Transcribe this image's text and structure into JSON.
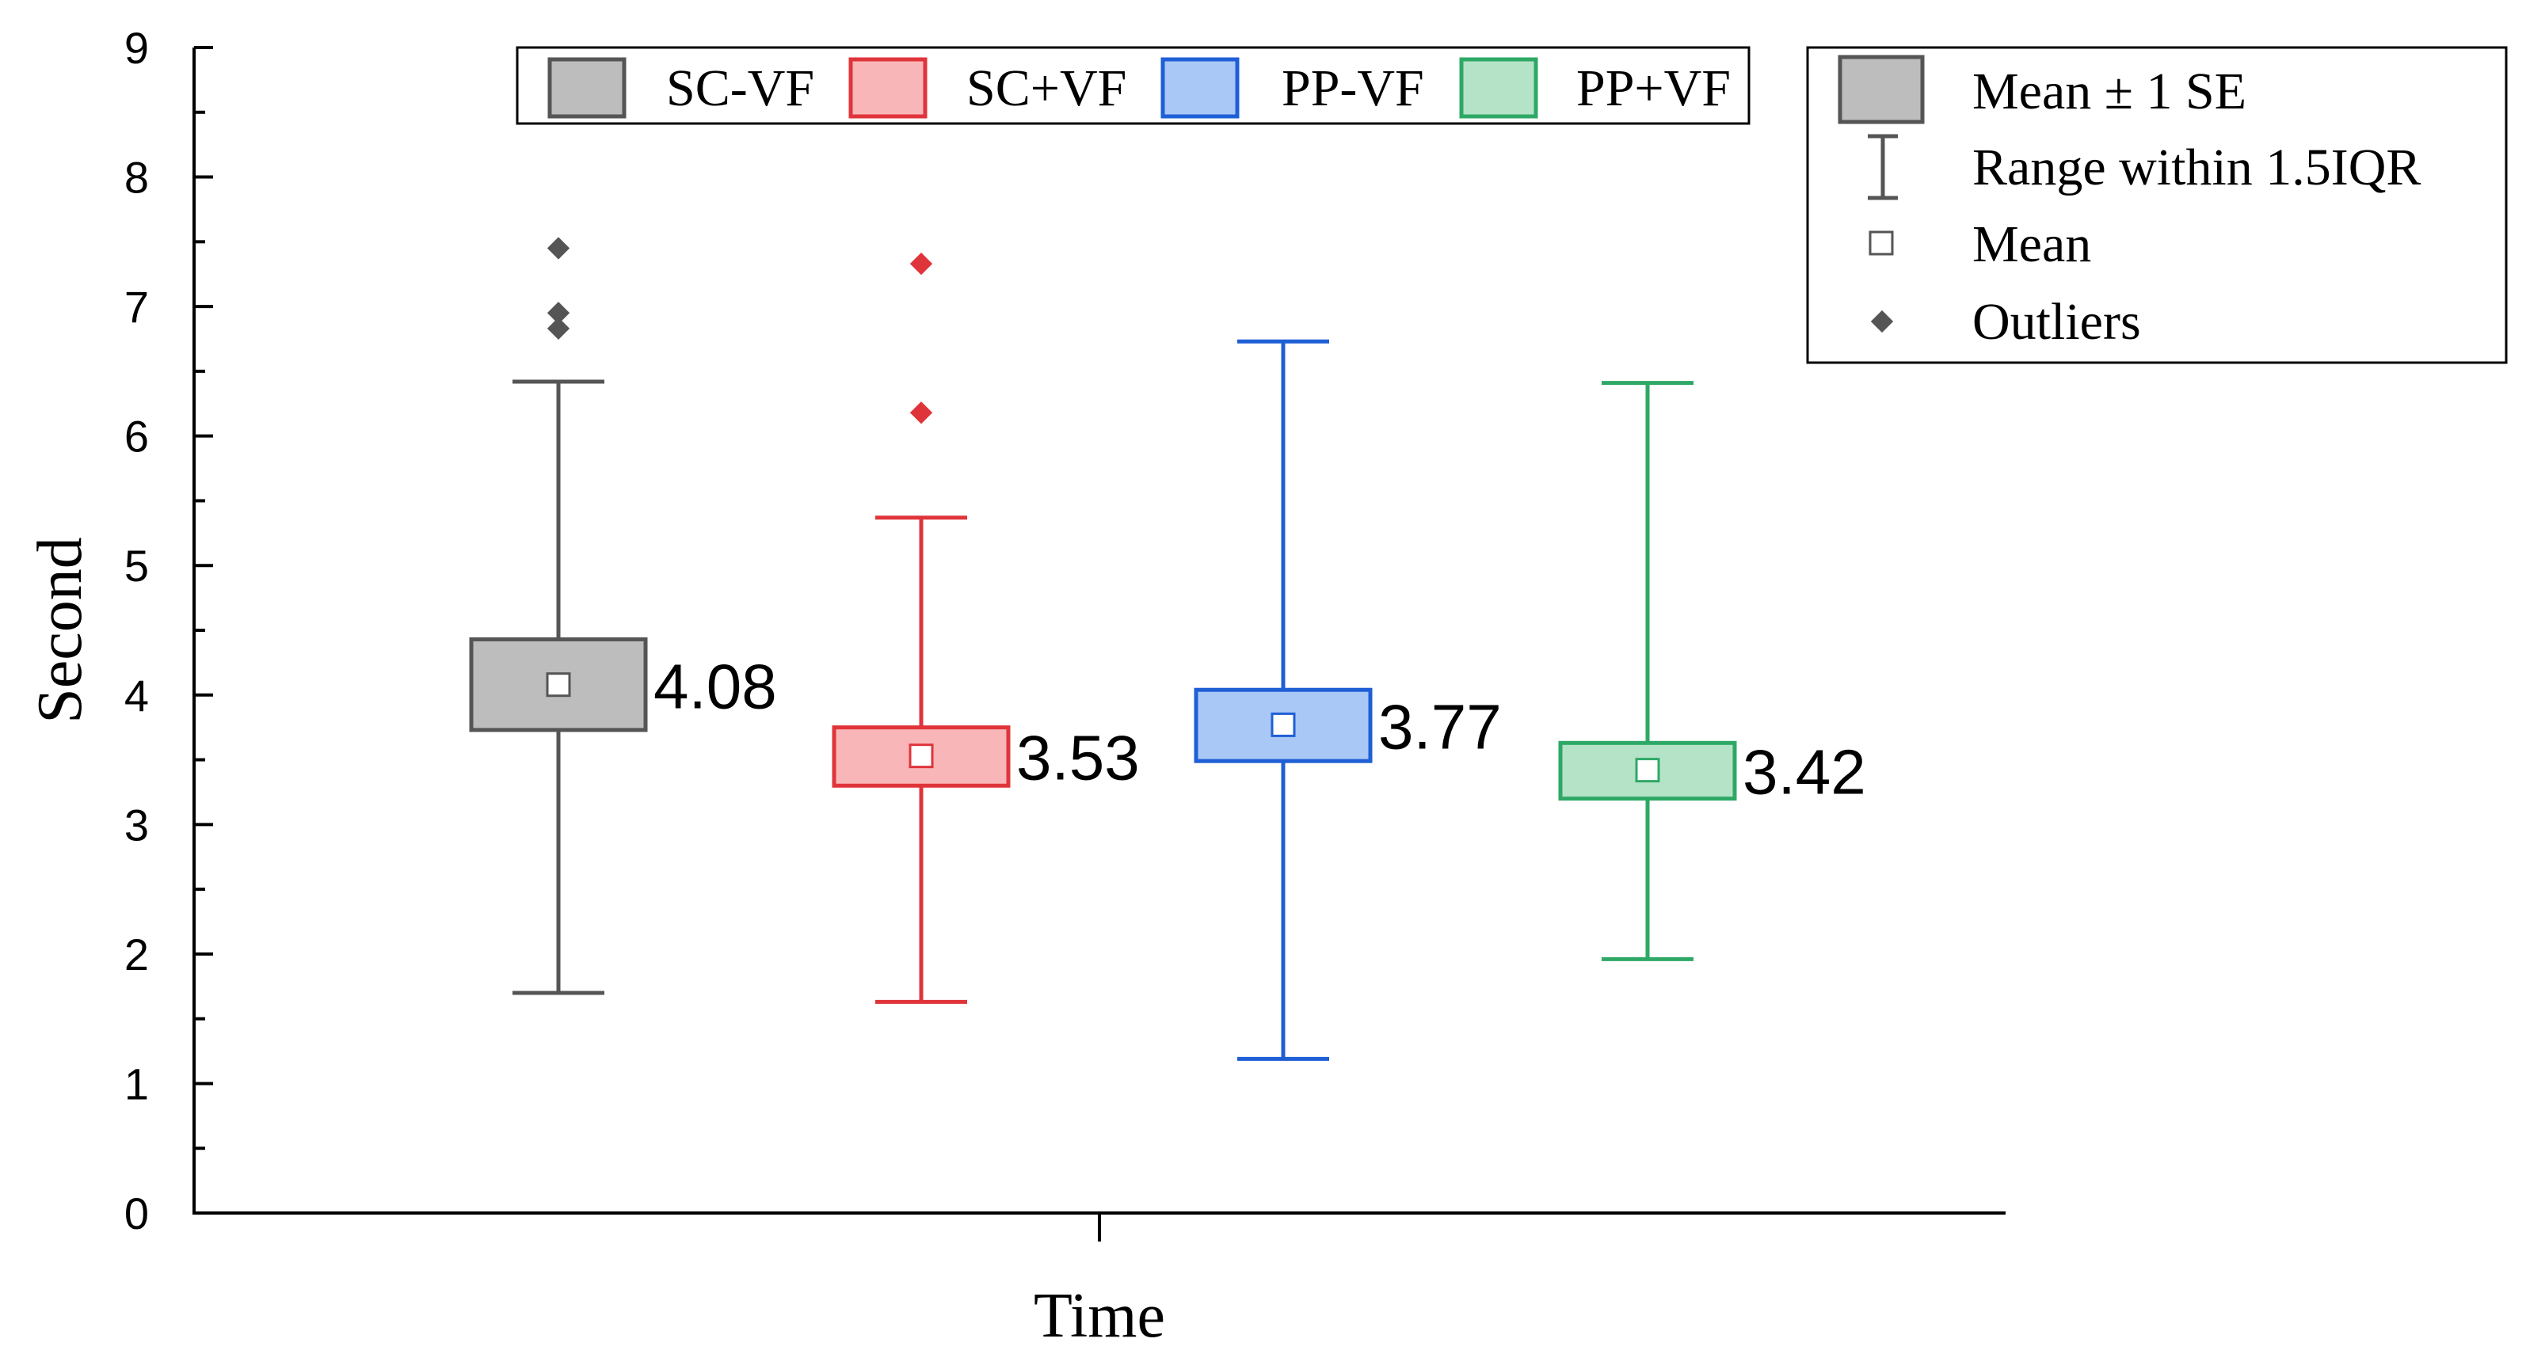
{
  "chart_data": {
    "type": "box",
    "title": "",
    "xlabel": "Time",
    "ylabel": "Second",
    "ylim": [
      0,
      9
    ],
    "yticks": [
      "0",
      "1",
      "2",
      "3",
      "4",
      "5",
      "6",
      "7",
      "8",
      "9"
    ],
    "grid": false,
    "series": [
      {
        "name": "SC-VF",
        "color": "#555555",
        "fill": "#bdbdbd",
        "mean": 4.08,
        "mean_label": "4.08",
        "box_low": 3.73,
        "box_high": 4.43,
        "whisker_low": 1.7,
        "whisker_high": 6.42,
        "outliers": [
          6.83,
          6.95,
          7.45
        ]
      },
      {
        "name": "SC+VF",
        "color": "#e0343b",
        "fill": "#f8b6b8",
        "mean": 3.53,
        "mean_label": "3.53",
        "box_low": 3.3,
        "box_high": 3.75,
        "whisker_low": 1.63,
        "whisker_high": 5.37,
        "outliers": [
          6.18,
          7.33
        ]
      },
      {
        "name": "PP-VF",
        "color": "#1f5fd6",
        "fill": "#a9c8f5",
        "mean": 3.77,
        "mean_label": "3.77",
        "box_low": 3.49,
        "box_high": 4.04,
        "whisker_low": 1.19,
        "whisker_high": 6.73,
        "outliers": []
      },
      {
        "name": "PP+VF",
        "color": "#2ea866",
        "fill": "#b5e3c8",
        "mean": 3.42,
        "mean_label": "3.42",
        "box_low": 3.2,
        "box_high": 3.63,
        "whisker_low": 1.96,
        "whisker_high": 6.41,
        "outliers": []
      }
    ],
    "legend": {
      "placement": "top",
      "series_entries": [
        "SC-VF",
        "SC+VF",
        "PP-VF",
        "PP+VF"
      ]
    },
    "key_legend": {
      "placement": "top-right",
      "entries": {
        "mean_se": "Mean ± 1 SE",
        "range": "Range within 1.5IQR",
        "mean": "Mean",
        "outliers": "Outliers"
      }
    }
  }
}
